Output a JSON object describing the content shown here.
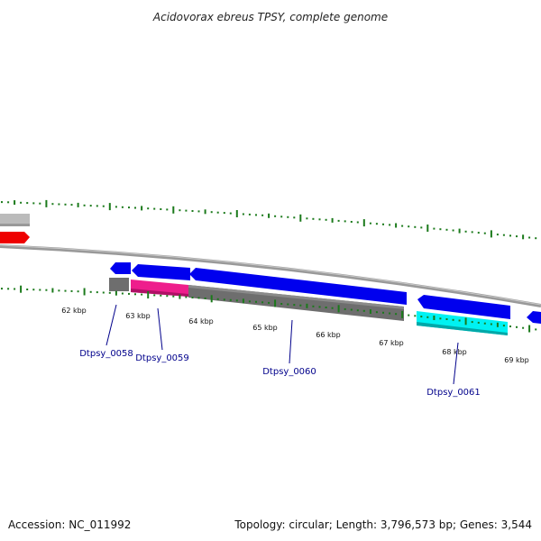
{
  "title": "Acidovorax ebreus TPSY, complete genome",
  "footer": {
    "accession": "Accession: NC_011992",
    "summary": "Topology: circular; Length: 3,796,573 bp; Genes: 3,544"
  },
  "colors": {
    "backbone": "#999999",
    "tick": "#1b7a1b",
    "forward_gene": "#0000ee",
    "cds_gray": "#6e6e6e",
    "label_blue": "#00008b",
    "highlight_magenta": "#ee1e8c",
    "highlight_cyan": "#00f2f2",
    "partial_red": "#ee0000",
    "partial_gray": "#bbbbbb"
  },
  "tick_labels": [
    "62 kbp",
    "63 kbp",
    "64 kbp",
    "65 kbp",
    "66 kbp",
    "67 kbp",
    "68 kbp",
    "69 kbp"
  ],
  "gene_labels": [
    "Dtpsy_0058",
    "Dtpsy_0059",
    "Dtpsy_0060",
    "Dtpsy_0061"
  ]
}
